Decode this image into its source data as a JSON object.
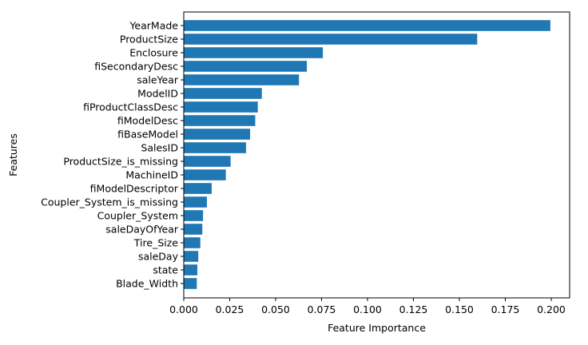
{
  "chart_data": {
    "type": "bar",
    "orientation": "horizontal",
    "categories": [
      "YearMade",
      "ProductSize",
      "Enclosure",
      "fiSecondaryDesc",
      "saleYear",
      "ModelID",
      "fiProductClassDesc",
      "fiModelDesc",
      "fiBaseModel",
      "SalesID",
      "ProductSize_is_missing",
      "MachineID",
      "fiModelDescriptor",
      "Coupler_System_is_missing",
      "Coupler_System",
      "saleDayOfYear",
      "Tire_Size",
      "saleDay",
      "state",
      "Blade_Width"
    ],
    "values": [
      0.1995,
      0.1597,
      0.0757,
      0.067,
      0.0627,
      0.0425,
      0.0403,
      0.0389,
      0.0361,
      0.0339,
      0.0255,
      0.0229,
      0.0152,
      0.0126,
      0.0105,
      0.0101,
      0.009,
      0.0079,
      0.0074,
      0.0071
    ],
    "xlabel": "Feature Importance",
    "ylabel": "Features",
    "xlim": [
      0,
      0.21
    ],
    "xticks": [
      0.0,
      0.025,
      0.05,
      0.075,
      0.1,
      0.125,
      0.15,
      0.175,
      0.2
    ],
    "xtick_labels": [
      "0.000",
      "0.025",
      "0.050",
      "0.075",
      "0.100",
      "0.125",
      "0.150",
      "0.175",
      "0.200"
    ],
    "grid": false,
    "bar_color": "#1f77b4"
  }
}
